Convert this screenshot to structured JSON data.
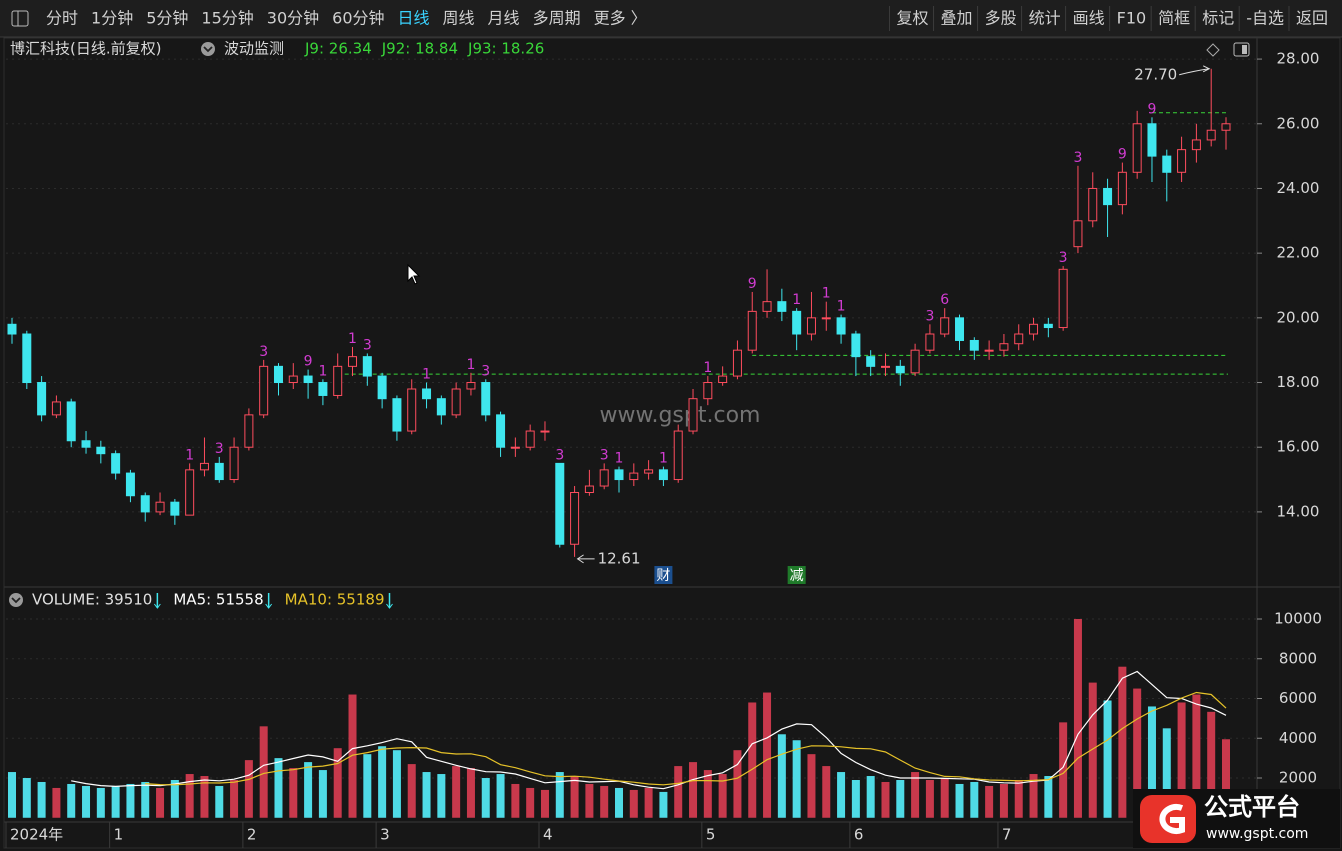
{
  "toolbar": {
    "left": [
      "分时",
      "1分钟",
      "5分钟",
      "15分钟",
      "30分钟",
      "60分钟",
      "日线",
      "周线",
      "月线",
      "多周期",
      "更多 〉"
    ],
    "right": [
      "复权",
      "叠加",
      "多股",
      "统计",
      "画线",
      "F10",
      "简框",
      "标记",
      "-自选",
      "返回"
    ]
  },
  "header": {
    "title": "博汇科技(日线.前复权)",
    "indicator": "波动监测"
  },
  "watermark": "www.gspt.com",
  "logo": {
    "name": "公式平台",
    "url": "www.gspt.com"
  },
  "badges": [
    "财",
    "减"
  ],
  "chart_data": [
    {
      "type": "candlestick",
      "categories": [
        "2024年",
        null,
        null,
        null,
        null,
        null,
        null,
        "1",
        null,
        null,
        null,
        null,
        null,
        null,
        null,
        null,
        "2",
        null,
        null,
        null,
        null,
        null,
        null,
        null,
        null,
        "3",
        null,
        null,
        null,
        null,
        null,
        null,
        null,
        null,
        null,
        null,
        "4",
        null,
        null,
        null,
        null,
        null,
        null,
        null,
        null,
        null,
        null,
        "5",
        null,
        null,
        null,
        null,
        null,
        null,
        null,
        null,
        null,
        "6",
        null,
        null,
        null,
        null,
        null,
        null,
        null,
        null,
        null,
        "7",
        null,
        null,
        null,
        null,
        null,
        null,
        null,
        null,
        null,
        null,
        null,
        null,
        null,
        null,
        null
      ],
      "open": [
        19.8,
        19.5,
        18.0,
        17.0,
        17.4,
        16.2,
        16.0,
        15.8,
        15.2,
        14.5,
        14.0,
        14.3,
        13.9,
        15.3,
        15.5,
        15.0,
        16.0,
        17.0,
        18.5,
        18.0,
        18.2,
        18.0,
        17.6,
        18.5,
        18.8,
        18.2,
        17.5,
        16.5,
        17.8,
        17.5,
        17.0,
        17.8,
        18.0,
        17.0,
        16.0,
        16.0,
        16.5,
        15.5,
        13.0,
        14.6,
        14.8,
        15.3,
        15.0,
        15.2,
        15.3,
        15.0,
        16.5,
        17.5,
        18.0,
        18.2,
        19.0,
        20.2,
        20.5,
        20.2,
        19.5,
        20.0,
        20.0,
        19.5,
        18.8,
        18.5,
        18.5,
        18.3,
        19.0,
        19.5,
        20.0,
        19.3,
        19.0,
        19.0,
        19.2,
        19.5,
        19.8,
        19.7,
        22.2,
        23.0,
        24.0,
        23.5,
        24.5,
        26.0,
        25.0,
        24.5,
        25.2,
        25.5,
        25.8
      ],
      "high": [
        20.0,
        19.6,
        18.2,
        17.6,
        17.5,
        16.5,
        16.2,
        15.9,
        15.3,
        14.6,
        14.6,
        14.4,
        15.5,
        16.3,
        15.7,
        16.3,
        17.2,
        18.7,
        18.6,
        18.6,
        18.4,
        18.1,
        18.9,
        19.1,
        18.9,
        18.3,
        17.6,
        18.1,
        18.0,
        17.6,
        18.0,
        18.3,
        18.1,
        17.1,
        16.3,
        16.7,
        16.8,
        15.5,
        14.8,
        15.3,
        15.5,
        15.4,
        15.5,
        15.6,
        15.4,
        16.7,
        17.8,
        18.2,
        18.5,
        19.3,
        20.8,
        21.5,
        20.9,
        20.3,
        20.8,
        20.5,
        20.1,
        19.6,
        19.0,
        18.9,
        18.7,
        19.2,
        19.8,
        20.3,
        20.1,
        19.4,
        19.3,
        19.5,
        19.8,
        20.0,
        20.0,
        21.6,
        24.7,
        24.5,
        24.3,
        24.8,
        26.4,
        26.2,
        25.2,
        25.6,
        26.0,
        27.7,
        26.2
      ],
      "low": [
        19.2,
        17.8,
        16.8,
        16.9,
        16.0,
        15.8,
        15.5,
        15.0,
        14.3,
        13.7,
        13.9,
        13.6,
        13.9,
        15.1,
        14.9,
        14.9,
        15.9,
        16.9,
        17.6,
        17.8,
        17.5,
        17.3,
        17.5,
        18.2,
        17.9,
        17.2,
        16.2,
        16.4,
        17.2,
        16.7,
        16.9,
        17.6,
        16.8,
        15.7,
        15.7,
        15.9,
        16.2,
        12.9,
        12.61,
        14.5,
        14.7,
        14.6,
        14.8,
        15.0,
        14.8,
        14.9,
        16.4,
        17.3,
        17.9,
        18.1,
        18.9,
        20.0,
        19.9,
        19.0,
        19.3,
        19.6,
        19.2,
        18.2,
        18.2,
        18.2,
        17.9,
        18.2,
        18.9,
        19.4,
        19.0,
        18.7,
        18.7,
        18.8,
        19.0,
        19.3,
        19.4,
        19.6,
        22.0,
        22.8,
        22.5,
        23.2,
        24.3,
        24.2,
        23.6,
        24.2,
        24.8,
        25.3,
        25.2
      ],
      "close": [
        19.5,
        18.0,
        17.0,
        17.4,
        16.2,
        16.0,
        15.8,
        15.2,
        14.5,
        14.0,
        14.3,
        13.9,
        15.3,
        15.5,
        15.0,
        16.0,
        17.0,
        18.5,
        18.0,
        18.2,
        18.0,
        17.6,
        18.5,
        18.8,
        18.2,
        17.5,
        16.5,
        17.8,
        17.5,
        17.0,
        17.8,
        18.0,
        17.0,
        16.0,
        16.0,
        16.5,
        16.5,
        13.0,
        14.6,
        14.8,
        15.3,
        15.0,
        15.2,
        15.3,
        15.0,
        16.5,
        17.5,
        18.0,
        18.2,
        19.0,
        20.2,
        20.5,
        20.2,
        19.5,
        20.0,
        20.0,
        19.5,
        18.8,
        18.5,
        18.5,
        18.3,
        19.0,
        19.5,
        20.0,
        19.3,
        19.0,
        19.0,
        19.2,
        19.5,
        19.8,
        19.7,
        21.5,
        23.0,
        24.0,
        23.5,
        24.5,
        26.0,
        25.0,
        24.5,
        25.2,
        25.5,
        25.8,
        26.0
      ],
      "up_color": "#ff4d5e",
      "down_color": "#3fe6ee",
      "signal_color": "#d23cd2",
      "signal_labels": [
        null,
        null,
        null,
        null,
        null,
        null,
        null,
        null,
        null,
        null,
        null,
        null,
        "1",
        null,
        "3",
        null,
        null,
        "3",
        null,
        null,
        "9",
        "1",
        null,
        "1",
        "3",
        null,
        null,
        null,
        "1",
        null,
        null,
        "1",
        "3",
        null,
        null,
        null,
        null,
        "3",
        null,
        null,
        "3",
        "1",
        null,
        null,
        "1",
        null,
        null,
        "1",
        null,
        null,
        "9",
        null,
        null,
        "1",
        null,
        "1",
        "1",
        null,
        null,
        null,
        null,
        null,
        "3",
        "6",
        null,
        null,
        null,
        null,
        null,
        null,
        null,
        "3",
        "3",
        null,
        null,
        "9",
        null,
        "9",
        null,
        null,
        null,
        null,
        null
      ],
      "levels": [
        {
          "label": "J9: 26.34",
          "value": 26.34,
          "color": "#39d639"
        },
        {
          "label": "J92: 18.84",
          "value": 18.84,
          "color": "#39d639"
        },
        {
          "label": "J93: 18.26",
          "value": 18.26,
          "color": "#39d639"
        }
      ],
      "annotations": [
        {
          "value": 27.7,
          "label": "27.70"
        },
        {
          "value": 12.61,
          "label": "12.61"
        }
      ],
      "ylim": [
        11.74,
        28.59
      ],
      "yticks": [
        {
          "value": 14,
          "label": "14.00"
        },
        {
          "value": 16,
          "label": "16.00"
        },
        {
          "value": 18,
          "label": "18.00"
        },
        {
          "value": 20,
          "label": "20.00"
        },
        {
          "value": 22,
          "label": "22.00"
        },
        {
          "value": 24,
          "label": "24.00"
        },
        {
          "value": 26,
          "label": "26.00"
        },
        {
          "value": 28,
          "label": "28.00"
        }
      ],
      "grid": true
    },
    {
      "type": "bar",
      "values": [
        2300,
        2000,
        1800,
        1500,
        1700,
        1600,
        1500,
        1600,
        1700,
        1800,
        1500,
        1900,
        2200,
        2100,
        1600,
        1900,
        2900,
        4600,
        3000,
        2500,
        2800,
        2400,
        3500,
        6200,
        3200,
        3600,
        3400,
        2700,
        2300,
        2200,
        2600,
        2500,
        2000,
        2200,
        1700,
        1500,
        1400,
        2300,
        2100,
        1700,
        1600,
        1500,
        1400,
        1500,
        1300,
        2600,
        2800,
        2400,
        2200,
        3400,
        5800,
        6300,
        4200,
        3900,
        3200,
        2600,
        2300,
        1900,
        2100,
        1800,
        1900,
        2300,
        1900,
        2000,
        1700,
        1800,
        1600,
        1700,
        1900,
        2200,
        2100,
        4800,
        10000,
        6800,
        5900,
        7600,
        6500,
        5600,
        4500,
        5800,
        6200,
        5330,
        3951
      ],
      "series": [
        {
          "name": "MA5",
          "color": "#ffffff",
          "values": [
            null,
            null,
            null,
            null,
            1860,
            1720,
            1620,
            1580,
            1620,
            1640,
            1620,
            1700,
            1820,
            1900,
            1860,
            1940,
            2140,
            2640,
            2800,
            2980,
            3160,
            3060,
            2840,
            3480,
            3620,
            3780,
            3980,
            3820,
            3040,
            2840,
            2640,
            2460,
            2320,
            2300,
            2200,
            1980,
            1760,
            1820,
            1880,
            1800,
            1820,
            1840,
            1660,
            1540,
            1460,
            1660,
            1920,
            2120,
            2260,
            2680,
            3720,
            4020,
            4460,
            4720,
            4680,
            4040,
            3240,
            2780,
            2420,
            2140,
            2000,
            2000,
            2000,
            1980,
            1960,
            1940,
            1800,
            1760,
            1740,
            1840,
            1900,
            2540,
            4200,
            5180,
            5920,
            7020,
            7360,
            6700,
            6040,
            6000,
            5720,
            5520,
            5156
          ]
        },
        {
          "name": "MA10",
          "color": "#e6c229",
          "values": [
            null,
            null,
            null,
            null,
            null,
            null,
            null,
            null,
            null,
            1720,
            1670,
            1660,
            1700,
            1760,
            1750,
            1790,
            1930,
            2230,
            2360,
            2420,
            2550,
            2600,
            2730,
            3150,
            3280,
            3450,
            3510,
            3530,
            3510,
            3280,
            3210,
            3220,
            3070,
            2670,
            2520,
            2310,
            2110,
            2070,
            2090,
            2040,
            1940,
            1850,
            1790,
            1700,
            1660,
            1730,
            1870,
            1870,
            1850,
            1990,
            2440,
            2920,
            3200,
            3450,
            3620,
            3610,
            3570,
            3490,
            3470,
            3310,
            2900,
            2500,
            2270,
            2080,
            2060,
            1960,
            1900,
            1880,
            1860,
            1880,
            1920,
            2230,
            3000,
            3460,
            3910,
            4490,
            4970,
            5370,
            5660,
            6020,
            6300,
            6200,
            5519
          ]
        }
      ],
      "legend": [
        {
          "label": "VOLUME: 39510",
          "color": "#e0e0e0"
        },
        {
          "label": "MA5: 51558",
          "color": "#ffffff"
        },
        {
          "label": "MA10: 55189",
          "color": "#e6c229"
        }
      ],
      "ylim": [
        -213,
        10352
      ],
      "yticks": [
        2000,
        4000,
        6000,
        8000,
        10000
      ],
      "grid": true
    }
  ]
}
